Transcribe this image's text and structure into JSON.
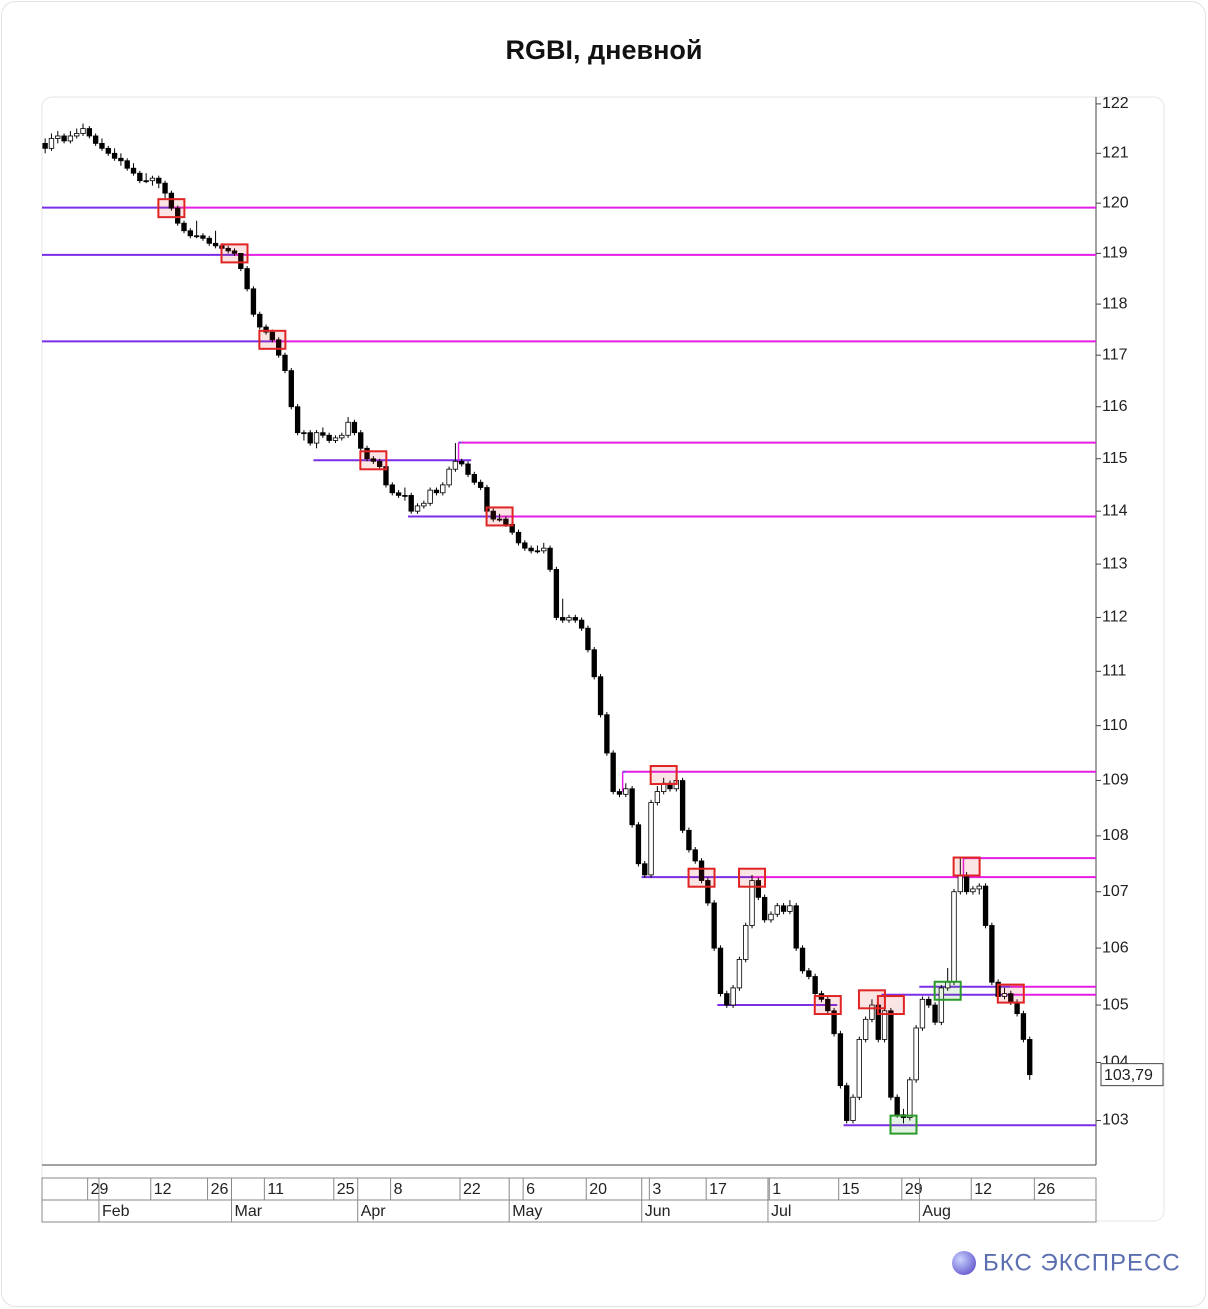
{
  "chart_data": {
    "type": "candlestick",
    "title": "RGBI, дневной",
    "brand": "БКС ЭКСПРЕСС",
    "log_scale": true,
    "ylim": [
      102.24,
      122.14
    ],
    "yticks": [
      103,
      104,
      105,
      106,
      107,
      108,
      109,
      110,
      111,
      112,
      113,
      114,
      115,
      116,
      117,
      118,
      119,
      120,
      121,
      122
    ],
    "last_price": {
      "value": 103.79,
      "label": "103,79"
    },
    "up_color": "#ffffff",
    "down_color": "#000000",
    "support_color": "#7a2ee6",
    "resistance_color": "#e41ee4",
    "categories": [
      null,
      null,
      null,
      null,
      null,
      null,
      null,
      null,
      "29",
      null,
      null,
      null,
      null,
      null,
      null,
      null,
      null,
      null,
      "12",
      null,
      null,
      null,
      null,
      null,
      null,
      null,
      null,
      "26",
      null,
      null,
      null,
      null,
      null,
      null,
      null,
      null,
      "11",
      null,
      null,
      null,
      null,
      null,
      null,
      null,
      null,
      null,
      null,
      "25",
      null,
      null,
      null,
      null,
      null,
      null,
      null,
      null,
      "8",
      null,
      null,
      null,
      null,
      null,
      null,
      null,
      null,
      null,
      null,
      "22",
      null,
      null,
      null,
      null,
      null,
      null,
      null,
      null,
      null,
      "6",
      null,
      null,
      null,
      null,
      null,
      null,
      null,
      null,
      null,
      "20",
      null,
      null,
      null,
      null,
      null,
      null,
      null,
      null,
      null,
      "3",
      null,
      null,
      null,
      null,
      null,
      null,
      null,
      null,
      "17",
      null,
      null,
      null,
      null,
      null,
      null,
      null,
      null,
      null,
      "1",
      null,
      null,
      null,
      null,
      null,
      null,
      null,
      null,
      null,
      null,
      "15",
      null,
      null,
      null,
      null,
      null,
      null,
      null,
      null,
      null,
      "29",
      null,
      null,
      null,
      null,
      null,
      null,
      null,
      null,
      null,
      null,
      "12",
      null,
      null,
      null,
      null,
      null,
      null,
      null,
      null,
      null,
      "26",
      null,
      null,
      null,
      null,
      null,
      null,
      null,
      null
    ],
    "months": [
      null,
      null,
      null,
      null,
      null,
      null,
      null,
      null,
      null,
      "Feb",
      null,
      null,
      null,
      null,
      null,
      null,
      null,
      null,
      null,
      null,
      null,
      null,
      null,
      null,
      null,
      null,
      null,
      null,
      null,
      null,
      "Mar",
      null,
      null,
      null,
      null,
      null,
      null,
      null,
      null,
      null,
      null,
      null,
      null,
      null,
      null,
      null,
      null,
      null,
      null,
      null,
      "Apr",
      null,
      null,
      null,
      null,
      null,
      null,
      null,
      null,
      null,
      null,
      null,
      null,
      null,
      null,
      null,
      null,
      null,
      null,
      null,
      null,
      null,
      null,
      null,
      "May",
      null,
      null,
      null,
      null,
      null,
      null,
      null,
      null,
      null,
      null,
      null,
      null,
      null,
      null,
      null,
      null,
      null,
      null,
      null,
      null,
      "Jun",
      null,
      null,
      null,
      null,
      null,
      null,
      null,
      null,
      null,
      null,
      null,
      null,
      null,
      null,
      null,
      null,
      null,
      null,
      null,
      "Jul",
      null,
      null,
      null,
      null,
      null,
      null,
      null,
      null,
      null,
      null,
      null,
      null,
      null,
      null,
      null,
      null,
      null,
      null,
      null,
      null,
      null,
      null,
      null,
      "Aug",
      null,
      null,
      null,
      null,
      null,
      null,
      null,
      null,
      null,
      null,
      null,
      null,
      null,
      null,
      null,
      null,
      null,
      null,
      null,
      null,
      null,
      null,
      null,
      null,
      null,
      null,
      null
    ],
    "ohlc": [
      [
        121.2,
        121.3,
        121.0,
        121.1
      ],
      [
        121.1,
        121.4,
        121.05,
        121.3
      ],
      [
        121.3,
        121.45,
        121.2,
        121.35
      ],
      [
        121.35,
        121.4,
        121.2,
        121.25
      ],
      [
        121.25,
        121.45,
        121.2,
        121.35
      ],
      [
        121.35,
        121.5,
        121.3,
        121.4
      ],
      [
        121.4,
        121.6,
        121.35,
        121.5
      ],
      [
        121.5,
        121.55,
        121.3,
        121.35
      ],
      [
        121.35,
        121.4,
        121.15,
        121.2
      ],
      [
        121.2,
        121.3,
        121.05,
        121.1
      ],
      [
        121.1,
        121.15,
        120.95,
        121.0
      ],
      [
        121.0,
        121.1,
        120.85,
        120.9
      ],
      [
        120.9,
        121.0,
        120.75,
        120.85
      ],
      [
        120.85,
        120.9,
        120.65,
        120.7
      ],
      [
        120.7,
        120.8,
        120.55,
        120.6
      ],
      [
        120.6,
        120.65,
        120.4,
        120.45
      ],
      [
        120.45,
        120.6,
        120.4,
        120.45
      ],
      [
        120.45,
        120.55,
        120.35,
        120.5
      ],
      [
        120.5,
        120.55,
        120.3,
        120.4
      ],
      [
        120.4,
        120.45,
        120.1,
        120.2
      ],
      [
        120.2,
        120.25,
        119.85,
        119.9
      ],
      [
        119.9,
        119.95,
        119.55,
        119.6
      ],
      [
        119.6,
        119.65,
        119.4,
        119.45
      ],
      [
        119.45,
        119.5,
        119.3,
        119.35
      ],
      [
        119.35,
        119.65,
        119.3,
        119.35
      ],
      [
        119.35,
        119.4,
        119.25,
        119.3
      ],
      [
        119.3,
        119.35,
        119.15,
        119.2
      ],
      [
        119.2,
        119.45,
        119.1,
        119.15
      ],
      [
        119.15,
        119.2,
        119.0,
        119.1
      ],
      [
        119.1,
        119.15,
        119.0,
        119.05
      ],
      [
        119.05,
        119.1,
        118.95,
        119.0
      ],
      [
        119.0,
        119.0,
        118.65,
        118.7
      ],
      [
        118.7,
        118.75,
        118.25,
        118.3
      ],
      [
        118.3,
        118.35,
        117.75,
        117.8
      ],
      [
        117.8,
        117.85,
        117.5,
        117.55
      ],
      [
        117.55,
        117.6,
        117.4,
        117.45
      ],
      [
        117.45,
        117.5,
        117.25,
        117.3
      ],
      [
        117.3,
        117.35,
        116.95,
        117.0
      ],
      [
        117.0,
        117.05,
        116.65,
        116.7
      ],
      [
        116.7,
        116.75,
        115.95,
        116.0
      ],
      [
        116.0,
        116.05,
        115.45,
        115.5
      ],
      [
        115.5,
        115.55,
        115.35,
        115.5
      ],
      [
        115.5,
        115.55,
        115.25,
        115.3
      ],
      [
        115.3,
        115.55,
        115.2,
        115.5
      ],
      [
        115.5,
        115.6,
        115.4,
        115.45
      ],
      [
        115.45,
        115.5,
        115.3,
        115.35
      ],
      [
        115.35,
        115.45,
        115.3,
        115.4
      ],
      [
        115.4,
        115.5,
        115.35,
        115.45
      ],
      [
        115.45,
        115.8,
        115.4,
        115.7
      ],
      [
        115.7,
        115.75,
        115.45,
        115.5
      ],
      [
        115.5,
        115.55,
        115.15,
        115.2
      ],
      [
        115.2,
        115.25,
        114.95,
        115.0
      ],
      [
        115.0,
        115.05,
        114.9,
        114.95
      ],
      [
        114.95,
        115.0,
        114.8,
        114.85
      ],
      [
        114.85,
        114.9,
        114.45,
        114.5
      ],
      [
        114.5,
        114.55,
        114.3,
        114.35
      ],
      [
        114.35,
        114.4,
        114.25,
        114.3
      ],
      [
        114.3,
        114.45,
        114.2,
        114.3
      ],
      [
        114.3,
        114.35,
        113.95,
        114.0
      ],
      [
        114.0,
        114.15,
        113.95,
        114.1
      ],
      [
        114.1,
        114.2,
        114.05,
        114.15
      ],
      [
        114.15,
        114.45,
        114.1,
        114.4
      ],
      [
        114.4,
        114.45,
        114.3,
        114.35
      ],
      [
        114.35,
        114.55,
        114.3,
        114.5
      ],
      [
        114.5,
        114.85,
        114.45,
        114.8
      ],
      [
        114.8,
        115.3,
        114.75,
        114.95
      ],
      [
        114.95,
        115.0,
        114.85,
        114.9
      ],
      [
        114.9,
        114.95,
        114.65,
        114.7
      ],
      [
        114.7,
        114.75,
        114.5,
        114.55
      ],
      [
        114.55,
        114.6,
        114.4,
        114.45
      ],
      [
        114.45,
        114.5,
        113.95,
        114.0
      ],
      [
        114.0,
        114.05,
        113.8,
        113.85
      ],
      [
        113.85,
        113.95,
        113.8,
        113.85
      ],
      [
        113.85,
        113.9,
        113.7,
        113.75
      ],
      [
        113.75,
        113.8,
        113.55,
        113.6
      ],
      [
        113.6,
        113.65,
        113.35,
        113.4
      ],
      [
        113.4,
        113.45,
        113.25,
        113.3
      ],
      [
        113.3,
        113.35,
        113.2,
        113.25
      ],
      [
        113.25,
        113.35,
        113.2,
        113.25
      ],
      [
        113.25,
        113.4,
        113.2,
        113.3
      ],
      [
        113.3,
        113.35,
        112.85,
        112.9
      ],
      [
        112.9,
        112.95,
        111.95,
        112.0
      ],
      [
        112.0,
        112.35,
        111.9,
        111.95
      ],
      [
        111.95,
        112.05,
        111.9,
        112.0
      ],
      [
        112.0,
        112.05,
        111.9,
        111.95
      ],
      [
        111.95,
        112.0,
        111.75,
        111.8
      ],
      [
        111.8,
        111.85,
        111.35,
        111.4
      ],
      [
        111.4,
        111.45,
        110.85,
        110.9
      ],
      [
        110.9,
        110.95,
        110.15,
        110.2
      ],
      [
        110.2,
        110.25,
        109.45,
        109.5
      ],
      [
        109.5,
        109.55,
        108.75,
        108.8
      ],
      [
        108.8,
        108.85,
        108.7,
        108.75
      ],
      [
        108.75,
        108.95,
        108.7,
        108.85
      ],
      [
        108.85,
        108.9,
        108.15,
        108.2
      ],
      [
        108.2,
        108.25,
        107.45,
        107.5
      ],
      [
        107.5,
        107.55,
        107.25,
        107.3
      ],
      [
        107.3,
        108.65,
        107.25,
        108.6
      ],
      [
        108.6,
        108.9,
        108.55,
        108.8
      ],
      [
        108.8,
        109.05,
        108.75,
        108.95
      ],
      [
        108.95,
        109.0,
        108.8,
        108.85
      ],
      [
        108.85,
        109.1,
        108.8,
        109.0
      ],
      [
        109.0,
        109.05,
        108.05,
        108.1
      ],
      [
        108.1,
        108.15,
        107.7,
        107.75
      ],
      [
        107.75,
        107.8,
        107.5,
        107.55
      ],
      [
        107.55,
        107.6,
        107.15,
        107.2
      ],
      [
        107.2,
        107.25,
        106.75,
        106.8
      ],
      [
        106.8,
        106.85,
        105.95,
        106.0
      ],
      [
        106.0,
        106.05,
        105.15,
        105.2
      ],
      [
        105.2,
        105.25,
        104.95,
        105.0
      ],
      [
        105.0,
        105.35,
        104.95,
        105.3
      ],
      [
        105.3,
        105.85,
        105.25,
        105.8
      ],
      [
        105.8,
        106.45,
        105.75,
        106.4
      ],
      [
        106.4,
        107.3,
        106.35,
        107.2
      ],
      [
        107.2,
        107.25,
        106.85,
        106.9
      ],
      [
        106.9,
        106.95,
        106.45,
        106.5
      ],
      [
        106.5,
        106.65,
        106.45,
        106.6
      ],
      [
        106.6,
        106.8,
        106.55,
        106.75
      ],
      [
        106.75,
        106.8,
        106.6,
        106.65
      ],
      [
        106.65,
        106.85,
        106.6,
        106.75
      ],
      [
        106.75,
        106.8,
        105.95,
        106.0
      ],
      [
        106.0,
        106.05,
        105.55,
        105.6
      ],
      [
        105.6,
        105.65,
        105.45,
        105.5
      ],
      [
        105.5,
        105.55,
        105.15,
        105.2
      ],
      [
        105.2,
        105.25,
        105.05,
        105.1
      ],
      [
        105.1,
        105.15,
        104.85,
        104.9
      ],
      [
        104.9,
        104.95,
        104.45,
        104.5
      ],
      [
        104.5,
        104.55,
        103.55,
        103.6
      ],
      [
        103.6,
        103.65,
        102.95,
        103.0
      ],
      [
        103.0,
        103.45,
        102.95,
        103.4
      ],
      [
        103.4,
        104.45,
        103.35,
        104.4
      ],
      [
        104.4,
        104.8,
        104.35,
        104.75
      ],
      [
        104.75,
        105.1,
        104.7,
        105.0
      ],
      [
        105.0,
        105.05,
        104.35,
        104.4
      ],
      [
        104.4,
        104.95,
        104.35,
        104.9
      ],
      [
        104.9,
        104.95,
        103.35,
        103.4
      ],
      [
        103.4,
        103.45,
        103.05,
        103.1
      ],
      [
        103.1,
        103.2,
        102.95,
        103.05
      ],
      [
        103.05,
        103.75,
        103.0,
        103.7
      ],
      [
        103.7,
        104.65,
        103.65,
        104.6
      ],
      [
        104.6,
        105.15,
        104.55,
        105.1
      ],
      [
        105.1,
        105.15,
        104.95,
        105.0
      ],
      [
        105.0,
        105.05,
        104.65,
        104.7
      ],
      [
        104.7,
        105.35,
        104.65,
        105.3
      ],
      [
        105.3,
        105.65,
        105.25,
        105.4
      ],
      [
        105.4,
        107.05,
        105.35,
        107.0
      ],
      [
        107.0,
        107.6,
        106.95,
        107.3
      ],
      [
        107.3,
        107.35,
        106.95,
        107.0
      ],
      [
        107.0,
        107.1,
        106.95,
        107.05
      ],
      [
        107.05,
        107.15,
        106.95,
        107.1
      ],
      [
        107.1,
        107.15,
        106.35,
        106.4
      ],
      [
        106.4,
        106.45,
        105.35,
        105.4
      ],
      [
        105.4,
        105.45,
        105.1,
        105.15
      ],
      [
        105.15,
        105.3,
        105.1,
        105.2
      ],
      [
        105.2,
        105.25,
        105.0,
        105.05
      ],
      [
        105.05,
        105.1,
        104.8,
        104.85
      ],
      [
        104.85,
        104.9,
        104.35,
        104.4
      ],
      [
        104.4,
        104.45,
        103.7,
        103.79
      ],
      null,
      null,
      null,
      null,
      null,
      null,
      null,
      null,
      null,
      null
    ],
    "levels": [
      {
        "value": 119.91,
        "from": 0,
        "switch": 20
      },
      {
        "value": 118.97,
        "from": 0,
        "switch": 30
      },
      {
        "value": 117.27,
        "from": 0,
        "switch": 36
      },
      {
        "value": 114.97,
        "from": 43,
        "to": 67
      },
      {
        "value": 115.31,
        "from": 66,
        "switch": 66
      },
      {
        "value": 113.9,
        "from": 58,
        "switch": 72
      },
      {
        "value": 109.16,
        "from": 92,
        "switch": 92
      },
      {
        "value": 107.26,
        "from": 95,
        "switch": 112
      },
      {
        "value": 107.6,
        "from": 146,
        "switch": 146
      },
      {
        "value": 105.0,
        "from": 107,
        "to": 125
      },
      {
        "value": 105.18,
        "from": 133,
        "switch": 153
      },
      {
        "value": 105.32,
        "from": 139,
        "switch": 153
      },
      {
        "value": 102.92,
        "from": 127,
        "to": 166
      }
    ],
    "markers": [
      {
        "index": 20,
        "value": 119.9,
        "color": "#e02424"
      },
      {
        "index": 30,
        "value": 119.0,
        "color": "#e02424"
      },
      {
        "index": 36,
        "value": 117.3,
        "color": "#e02424"
      },
      {
        "index": 52,
        "value": 114.97,
        "color": "#e02424"
      },
      {
        "index": 72,
        "value": 113.9,
        "color": "#e02424"
      },
      {
        "index": 98,
        "value": 109.1,
        "color": "#e02424"
      },
      {
        "index": 104,
        "value": 107.25,
        "color": "#e02424"
      },
      {
        "index": 112,
        "value": 107.25,
        "color": "#e02424"
      },
      {
        "index": 124,
        "value": 105.0,
        "color": "#e02424"
      },
      {
        "index": 131,
        "value": 105.1,
        "color": "#e02424"
      },
      {
        "index": 134,
        "value": 105.0,
        "color": "#e02424"
      },
      {
        "index": 146,
        "value": 107.45,
        "color": "#e02424"
      },
      {
        "index": 153,
        "value": 105.2,
        "color": "#e02424"
      },
      {
        "index": 143,
        "value": 105.25,
        "color": "#2a9a2a"
      },
      {
        "index": 136,
        "value": 102.93,
        "color": "#2a9a2a"
      }
    ]
  }
}
